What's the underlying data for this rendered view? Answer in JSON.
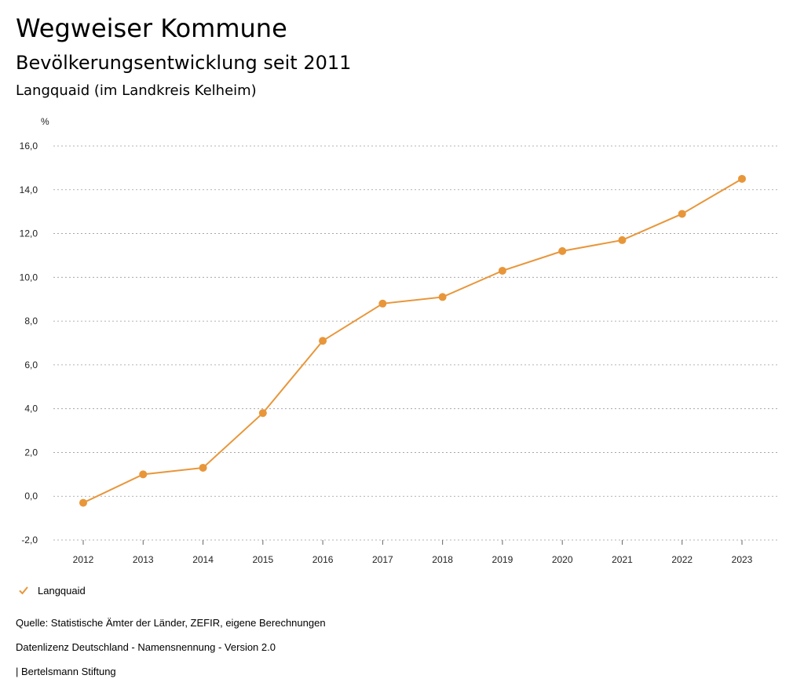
{
  "header": {
    "title": "Wegweiser Kommune",
    "subtitle": "Bevölkerungsentwicklung seit 2011",
    "region": "Langquaid (im Landkreis Kelheim)"
  },
  "chart_data": {
    "type": "line",
    "ylabel": "%",
    "xlabel": "",
    "categories": [
      "2012",
      "2013",
      "2014",
      "2015",
      "2016",
      "2017",
      "2018",
      "2019",
      "2020",
      "2021",
      "2022",
      "2023"
    ],
    "series": [
      {
        "name": "Langquaid",
        "color": "#e8963a",
        "values": [
          -0.3,
          1.0,
          1.3,
          3.8,
          7.1,
          8.8,
          9.1,
          10.3,
          11.2,
          11.7,
          12.9,
          14.5
        ]
      }
    ],
    "ylim": [
      -2,
      16
    ],
    "yticks": [
      -2,
      0,
      2,
      4,
      6,
      8,
      10,
      12,
      14,
      16
    ],
    "ytick_labels": [
      "-2,0",
      "0,0",
      "2,0",
      "4,0",
      "6,0",
      "8,0",
      "10,0",
      "12,0",
      "14,0",
      "16,0"
    ],
    "grid": true,
    "legend_position": "bottom-left"
  },
  "footer": {
    "source": "Quelle: Statistische Ämter der Länder, ZEFIR, eigene Berechnungen",
    "license": "Datenlizenz Deutschland - Namensnennung - Version 2.0",
    "publisher": "| Bertelsmann Stiftung"
  }
}
